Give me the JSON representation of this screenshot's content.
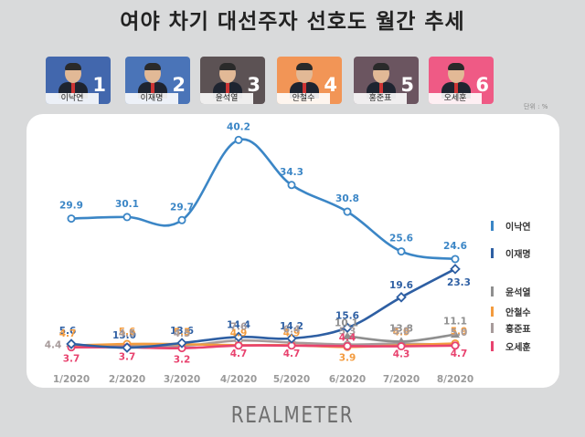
{
  "title": "여야 차기 대선주자 선호도 월간 추세",
  "unit_label": "단위 : %",
  "brand": "REALMETER",
  "candidates": [
    {
      "name": "이낙연",
      "rank": "1",
      "bg": "#4267ad",
      "line_color": "#3b86c6"
    },
    {
      "name": "이재명",
      "rank": "2",
      "bg": "#4a74b8",
      "line_color": "#2e5fa3"
    },
    {
      "name": "윤석열",
      "rank": "3",
      "bg": "#5c5254",
      "line_color": "#8f8f8f"
    },
    {
      "name": "안철수",
      "rank": "4",
      "bg": "#f29556",
      "line_color": "#f39b3e"
    },
    {
      "name": "홍준표",
      "rank": "5",
      "bg": "#6b5560",
      "line_color": "#b0a5a5"
    },
    {
      "name": "오세훈",
      "rank": "6",
      "bg": "#ef5a85",
      "line_color": "#e8436f"
    }
  ],
  "chart_data": {
    "type": "line",
    "categories": [
      "1/2020",
      "2/2020",
      "3/2020",
      "4/2020",
      "5/2020",
      "6/2020",
      "7/2020",
      "8/2020"
    ],
    "ylim": [
      0,
      45
    ],
    "legend": "right",
    "series": [
      {
        "name": "이낙연",
        "color": "#3b86c6",
        "marker": "circle",
        "values": [
          29.9,
          30.1,
          29.7,
          40.2,
          34.3,
          30.8,
          25.6,
          24.6
        ]
      },
      {
        "name": "이재명",
        "color": "#2e5fa3",
        "marker": "diamond",
        "values": [
          5.6,
          13.0,
          13.6,
          14.4,
          14.2,
          15.6,
          19.6,
          23.3
        ]
      },
      {
        "name": "윤석열",
        "color": "#8f8f8f",
        "marker": "triangle",
        "values": [
          null,
          null,
          null,
          null,
          null,
          10.1,
          13.8,
          11.1
        ]
      },
      {
        "name": "안철수",
        "color": "#f39b3e",
        "marker": "circle",
        "values": [
          4.7,
          5.6,
          5.5,
          4.9,
          4.9,
          3.9,
          4.9,
          5.9
        ]
      },
      {
        "name": "홍준표",
        "color": "#a79b9b",
        "marker": "diamond",
        "values": [
          4.4,
          4.5,
          4.5,
          7.6,
          6.4,
          5.3,
          5.8,
          5.0
        ]
      },
      {
        "name": "오세훈",
        "color": "#e8436f",
        "marker": "circle",
        "values": [
          3.7,
          3.7,
          3.2,
          4.7,
          4.7,
          4.4,
          4.3,
          4.7
        ]
      }
    ]
  }
}
